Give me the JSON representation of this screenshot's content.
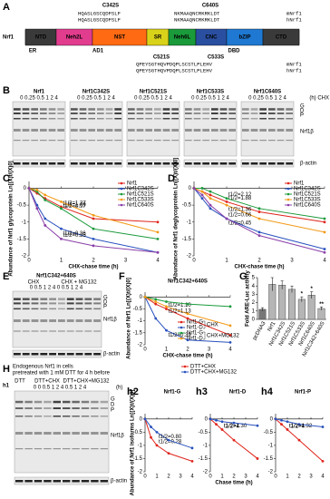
{
  "figure": {
    "A": {
      "label": "A",
      "protein": "Nrf1",
      "mutations_top": [
        "C342S",
        "C640S"
      ],
      "seq_top": [
        [
          "HQASLGSCQDFSLF",
          "NKMAAQNCRKRKLDT",
          "mNrf1"
        ],
        [
          "HQASLGSCQDFSLF",
          "NKMAAQNCRKRKLDT",
          "hNrf1"
        ]
      ],
      "domains": [
        "NTD",
        "Neh2L",
        "NST",
        "SR",
        "Neh6L",
        "CNC",
        "bZIP",
        "CTD"
      ],
      "regions": [
        "ER",
        "AD1",
        "DBD"
      ],
      "mutations_bottom": [
        "C521S",
        "C533S"
      ],
      "seq_bottom": [
        [
          "QPEYSGTHQVPDQPLSCSTLPLEHV",
          "mNrf1"
        ],
        [
          "QPEYSGTHQVPDQPLSCSTLPLEHV",
          "hNrf1"
        ]
      ]
    },
    "B": {
      "label": "B",
      "blots": [
        {
          "title": "Nrf1",
          "lanes": "0 0.25 0.5 1 2 4"
        },
        {
          "title": "Nrf1C342S",
          "lanes": "0 0.25 0.5 1 2 4"
        },
        {
          "title": "Nrf1C521S",
          "lanes": "0 0.25 0.5 1 2 4"
        },
        {
          "title": "Nrf1C533S",
          "lanes": "0 0.25 0.5 1 2 4"
        },
        {
          "title": "Nrf1C640S",
          "lanes": "0 0.25 0.5 1 2 4"
        }
      ],
      "unit": "(h) CHX",
      "bands": [
        "G",
        "D",
        "P"
      ],
      "beta": "Nrf1β",
      "actin": "β-actin"
    },
    "E": {
      "label": "E",
      "title": "Nrf1C342+640S",
      "groups": [
        "CHX",
        "CHX + MG132"
      ],
      "lanes": "0 0.5 1 2 4 0 0.5 1 2 4",
      "bands": [
        "G",
        "D",
        "P"
      ],
      "beta": "Nrf1β",
      "actin": "β-actin"
    },
    "H": {
      "label": "H",
      "caption": [
        "Endogenous Nrf1 in cells",
        "pretreated with 1 mM DTT for 4 h before"
      ],
      "sub": "h1",
      "groups": [
        "DTT",
        "DTT+CHX",
        "DTT+CHX+MG132"
      ],
      "lanes": "0 0 0.5 1 2 4 0.5 1 2 4",
      "unit": "(h)",
      "bands": [
        "G",
        "D",
        "P"
      ],
      "beta": "Nrf1β",
      "actin": "β-actin"
    }
  },
  "chart_data": [
    {
      "type": "line",
      "panel": "C",
      "ylabel": "Abundance of Nrf1 glycoprotein Ln[(X)t/(X)0]",
      "xlabel": "CHX-chase time (h)",
      "x": [
        0,
        0.25,
        0.5,
        1,
        2,
        4
      ],
      "xlim": [
        0,
        4
      ],
      "xticks": [
        0,
        1,
        2,
        3,
        4
      ],
      "ylim": [
        -2,
        0.2
      ],
      "yticks": [
        0,
        -0.5,
        -1,
        -1.5,
        -2
      ],
      "series": [
        {
          "name": "Nrf1",
          "color": "#e0241b",
          "values": [
            0,
            -0.15,
            -0.3,
            -0.55,
            -0.9,
            -1.0
          ],
          "annotation": "t1/2=1.27"
        },
        {
          "name": "Nrf1C342S",
          "color": "#2a52be",
          "values": [
            0,
            -0.5,
            -0.9,
            -1.2,
            -1.5,
            -1.9
          ],
          "annotation": "t1/2=0.36"
        },
        {
          "name": "Nrf1C521S",
          "color": "#1a9a3a",
          "values": [
            0,
            -0.1,
            -0.35,
            -0.6,
            -1.2,
            -1.5
          ],
          "annotation": "t1/2=1.09"
        },
        {
          "name": "Nrf1C533S",
          "color": "#f29a16",
          "values": [
            0,
            -0.05,
            -0.2,
            -0.4,
            -0.8,
            -1.3
          ],
          "annotation": "t1/2=0.97"
        },
        {
          "name": "Nrf1C640S",
          "color": "#8b3fa8",
          "values": [
            0,
            -0.6,
            -1.1,
            -1.5,
            -1.7,
            -1.9
          ],
          "annotation": "t1/2=0.35"
        }
      ]
    },
    {
      "type": "line",
      "panel": "D",
      "ylabel": "Abundance of Nrf1 deglycoprotein Ln[(X)t/(X)0]",
      "xlabel": "CHX-chase time (h)",
      "x": [
        0,
        0.25,
        0.5,
        1,
        2,
        4
      ],
      "xlim": [
        0,
        4
      ],
      "xticks": [
        0,
        1,
        2,
        3,
        4
      ],
      "ylim": [
        -2,
        0.2
      ],
      "yticks": [
        0,
        -0.5,
        -1,
        -1.5,
        -2
      ],
      "series": [
        {
          "name": "Nrf1",
          "color": "#e0241b",
          "values": [
            0,
            -0.1,
            -0.2,
            -0.4,
            -0.7,
            -1.0
          ],
          "annotation": "t1/2=1.88"
        },
        {
          "name": "Nrf1C342S",
          "color": "#2a52be",
          "values": [
            0,
            -0.3,
            -0.6,
            -0.9,
            -1.3,
            -1.8
          ],
          "annotation": "t1/2=0.45"
        },
        {
          "name": "Nrf1C521S",
          "color": "#1a9a3a",
          "values": [
            0,
            0,
            -0.1,
            -0.3,
            -0.6,
            -0.9
          ],
          "annotation": "t1/2=2.12"
        },
        {
          "name": "Nrf1C533S",
          "color": "#f29a16",
          "values": [
            0,
            -0.1,
            -0.3,
            -0.5,
            -0.9,
            -1.3
          ],
          "annotation": "t1/2=1.36"
        },
        {
          "name": "Nrf1C640S",
          "color": "#8b3fa8",
          "values": [
            0,
            -0.2,
            -0.5,
            -0.9,
            -1.4,
            -1.9
          ],
          "annotation": "t1/2=0.66"
        }
      ]
    },
    {
      "type": "line",
      "panel": "F",
      "title": "Nrf1C342+640S",
      "ylabel": "Abundance of Nrf1 Ln[(X)t/(X)0]",
      "xlabel": "CHX-chase time (h)",
      "x": [
        0,
        0.5,
        1,
        2,
        4
      ],
      "xlim": [
        0,
        4
      ],
      "xticks": [
        0,
        1,
        2,
        3,
        4
      ],
      "ylim": [
        -2,
        0.2
      ],
      "yticks": [
        0,
        -0.5,
        -1,
        -1.5,
        -2
      ],
      "legend_groups": [
        "CHX",
        "CHX+MG132"
      ],
      "series": [
        {
          "name": "Nrf1-G",
          "color": "#e0241b",
          "values": [
            0,
            -0.3,
            -0.5,
            -0.9,
            -1.6
          ],
          "annotation": "t1/2=1.10"
        },
        {
          "name": "Nrf1-D",
          "color": "#2a52be",
          "values": [
            0,
            -0.9,
            -1.4,
            -1.8,
            -1.9
          ],
          "annotation": "t1/2=0.39"
        },
        {
          "name": "Nrf1-G",
          "color": "#1a9a3a",
          "values": [
            0,
            -0.1,
            -0.2,
            -0.3,
            -0.4
          ]
        },
        {
          "name": "Nrf1-D",
          "color": "#f29a16",
          "values": [
            0,
            -0.2,
            -0.4,
            -0.7,
            -1.2
          ],
          "annotation": "t1/2=1.13"
        }
      ]
    },
    {
      "type": "bar",
      "panel": "G",
      "ylabel": "Fold ARE-Luc activity",
      "categories": [
        "pcDNA3",
        "Nrf1",
        "Nrf1C342S",
        "Nrf1C521S",
        "Nrf1C533S",
        "Nrf1C640S",
        "Nrf1C342+640S"
      ],
      "values": [
        1.2,
        4.2,
        4.1,
        3.6,
        2.4,
        2.9,
        1.3
      ],
      "errors": [
        0.2,
        0.8,
        0.5,
        0.4,
        0.3,
        0.4,
        0.2
      ],
      "significance": [
        null,
        null,
        null,
        null,
        "*",
        "*",
        "**"
      ],
      "colors": [
        "#777777",
        "#b5b5b5"
      ],
      "ylim": [
        0,
        5
      ],
      "yticks": [
        0,
        1,
        2,
        3,
        4,
        5
      ]
    },
    {
      "type": "line",
      "panel": "h2",
      "title": "Nrf1-G",
      "ylabel": "Abundance of Nrf1 isoforms Ln[(X)t/(X)0]",
      "x": [
        0,
        0.5,
        1,
        2,
        4
      ],
      "xlim": [
        0,
        4
      ],
      "xticks": [
        0,
        1,
        2,
        3,
        4
      ],
      "ylim": [
        -2,
        0.2
      ],
      "yticks": [
        0,
        -0.5,
        -1,
        -1.5,
        -2
      ],
      "series": [
        {
          "name": "DTT+CHX",
          "color": "#e0241b",
          "values": [
            0,
            -0.7,
            -1.0,
            -1.3,
            -1.6
          ],
          "annotation": "t1/2=0.28"
        },
        {
          "name": "DTT+CHX+MG132",
          "color": "#2a52be",
          "values": [
            0,
            -0.3,
            -0.5,
            -0.8,
            -1.1
          ],
          "annotation": "t1/2=0.80"
        }
      ]
    },
    {
      "type": "line",
      "panel": "h3",
      "title": "Nrf1-D",
      "xlabel": "Chase time (h)",
      "x": [
        0,
        0.5,
        1,
        2,
        4
      ],
      "xlim": [
        0,
        4
      ],
      "xticks": [
        0,
        1,
        2,
        3,
        4
      ],
      "ylim": [
        -2,
        0.2
      ],
      "yticks": [
        0,
        -0.5,
        -1,
        -1.5,
        -2
      ],
      "series": [
        {
          "color": "#e0241b",
          "values": [
            0,
            -0.2,
            -0.4,
            -0.8,
            -1.5
          ],
          "annotation": "t1/2=1.30"
        },
        {
          "color": "#2a52be",
          "values": [
            0,
            -0.05,
            -0.1,
            -0.15,
            -0.25
          ],
          "annotation": "t1/2>4"
        }
      ]
    },
    {
      "type": "line",
      "panel": "h4",
      "title": "Nrf1-P",
      "x": [
        0,
        0.5,
        1,
        2,
        4
      ],
      "xlim": [
        0,
        4
      ],
      "xticks": [
        0,
        1,
        2,
        3,
        4
      ],
      "ylim": [
        -2,
        0.2
      ],
      "yticks": [
        0,
        -0.5,
        -1,
        -1.5,
        -2
      ],
      "series": [
        {
          "color": "#e0241b",
          "values": [
            0,
            -0.2,
            -0.4,
            -0.8,
            -1.6
          ],
          "annotation": "t1/2=1.32"
        },
        {
          "color": "#2a52be",
          "values": [
            0,
            -0.05,
            -0.1,
            -0.2,
            -0.3
          ],
          "annotation": "t1/2>4"
        }
      ]
    }
  ]
}
